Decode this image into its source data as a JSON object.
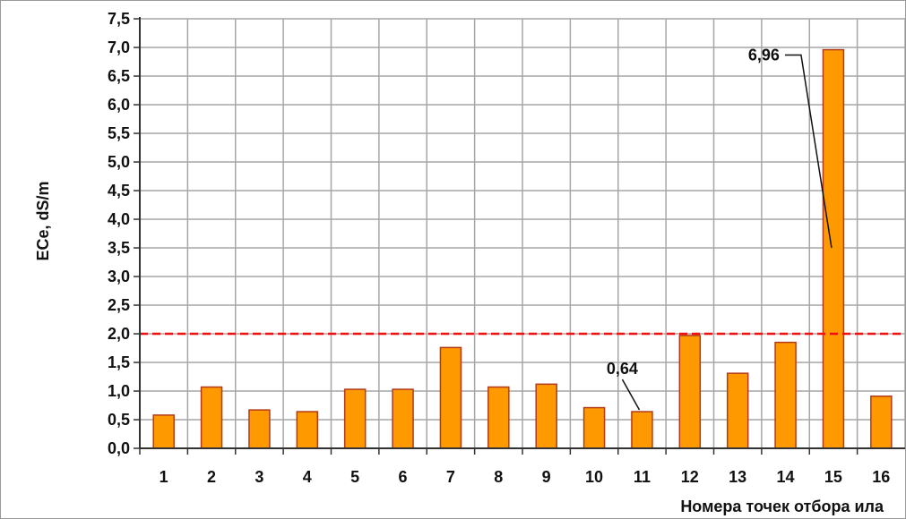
{
  "chart_data": {
    "type": "bar",
    "categories": [
      "1",
      "2",
      "3",
      "4",
      "5",
      "6",
      "7",
      "8",
      "9",
      "10",
      "11",
      "12",
      "13",
      "14",
      "15",
      "16"
    ],
    "values": [
      0.58,
      1.07,
      0.67,
      0.64,
      1.03,
      1.03,
      1.76,
      1.07,
      1.12,
      0.71,
      0.64,
      1.97,
      1.31,
      1.85,
      6.96,
      0.91
    ],
    "xlabel": "Номера точек отбора ила",
    "ylabel": "ECe, dS/m",
    "ylim": [
      0,
      7.5
    ],
    "ytick_labels": [
      "0,0",
      "0,5",
      "1,0",
      "1,5",
      "2,0",
      "2,5",
      "3,0",
      "3,5",
      "4,0",
      "4,5",
      "5,0",
      "5,5",
      "6,0",
      "6,5",
      "7,0",
      "7,5"
    ],
    "threshold_line": 2.0,
    "grid": true,
    "annotations": [
      {
        "category": "11",
        "text": "0,64"
      },
      {
        "category": "15",
        "text": "6,96"
      }
    ],
    "colors": {
      "bar_fill": "#ff9900",
      "bar_stroke": "#b23a1a",
      "threshold": "#ee1111",
      "grid": "#a6a6a6"
    }
  }
}
